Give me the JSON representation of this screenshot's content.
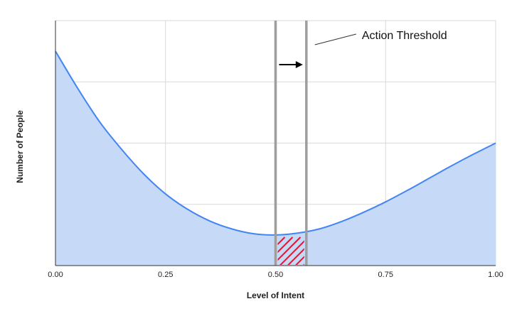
{
  "chart_data": {
    "type": "area",
    "xlabel": "Level of Intent",
    "ylabel": "Number of People",
    "xlim": [
      0,
      1
    ],
    "ylim": [
      0,
      4
    ],
    "x_ticks": [
      "0.00",
      "0.25",
      "0.50",
      "0.75",
      "1.00"
    ],
    "x_tick_values": [
      0,
      0.25,
      0.5,
      0.75,
      1.0
    ],
    "y_gridlines": [
      1,
      2,
      3,
      4
    ],
    "grid": true,
    "series": [
      {
        "x": [
          0,
          0.05,
          0.1,
          0.15,
          0.2,
          0.25,
          0.3,
          0.35,
          0.4,
          0.45,
          0.5,
          0.55,
          0.6,
          0.65,
          0.7,
          0.75,
          0.8,
          0.85,
          0.9,
          0.95,
          1.0
        ],
        "y": [
          3.5,
          2.9,
          2.35,
          1.9,
          1.5,
          1.17,
          0.92,
          0.73,
          0.6,
          0.52,
          0.5,
          0.53,
          0.6,
          0.72,
          0.87,
          1.04,
          1.23,
          1.43,
          1.63,
          1.82,
          2.0
        ],
        "line_color": "#4285f4",
        "fill_color": "#c6d9f7"
      }
    ],
    "thresholds": [
      0.5,
      0.57
    ],
    "threshold_color": "#9e9e9e",
    "hatch_color": "#e8132b",
    "annotations": [
      {
        "text": "Action Threshold",
        "x": 0.57
      }
    ]
  }
}
